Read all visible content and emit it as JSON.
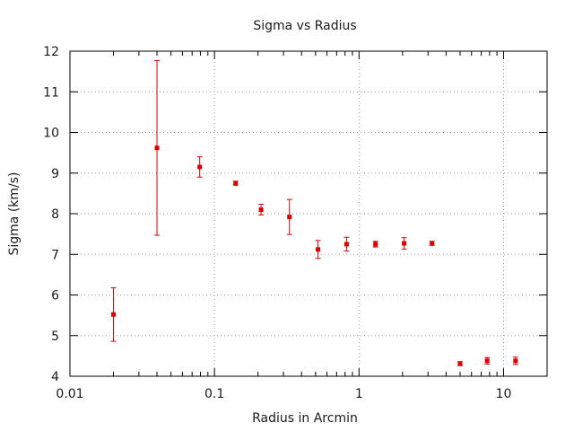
{
  "chart_data": {
    "type": "scatter",
    "title": "Sigma vs Radius",
    "xlabel": "Radius in Arcmin",
    "ylabel": "Sigma (km/s)",
    "xscale": "log",
    "xlim": [
      0.01,
      20
    ],
    "ylim": [
      4,
      12
    ],
    "grid": true,
    "x_ticks": [
      {
        "value": 0.01,
        "label": "0.01"
      },
      {
        "value": 0.1,
        "label": "0.1"
      },
      {
        "value": 1,
        "label": "1"
      },
      {
        "value": 10,
        "label": "10"
      }
    ],
    "y_ticks": [
      4,
      5,
      6,
      7,
      8,
      9,
      10,
      11,
      12
    ],
    "color": "#dd0000",
    "series": [
      {
        "points": [
          {
            "x": 0.02,
            "y": 5.52,
            "err": 0.66
          },
          {
            "x": 0.04,
            "y": 9.62,
            "err": 2.15
          },
          {
            "x": 0.079,
            "y": 9.15,
            "err": 0.25
          },
          {
            "x": 0.14,
            "y": 8.75,
            "err": 0.05
          },
          {
            "x": 0.21,
            "y": 8.1,
            "err": 0.13
          },
          {
            "x": 0.33,
            "y": 7.92,
            "err": 0.43
          },
          {
            "x": 0.52,
            "y": 7.12,
            "err": 0.22
          },
          {
            "x": 0.82,
            "y": 7.25,
            "err": 0.17
          },
          {
            "x": 1.3,
            "y": 7.25,
            "err": 0.07
          },
          {
            "x": 2.05,
            "y": 7.27,
            "err": 0.14
          },
          {
            "x": 3.2,
            "y": 7.27,
            "err": 0.05
          },
          {
            "x": 5.0,
            "y": 4.31,
            "err": 0.05
          },
          {
            "x": 7.7,
            "y": 4.38,
            "err": 0.08
          },
          {
            "x": 12.1,
            "y": 4.38,
            "err": 0.09
          }
        ]
      }
    ]
  }
}
